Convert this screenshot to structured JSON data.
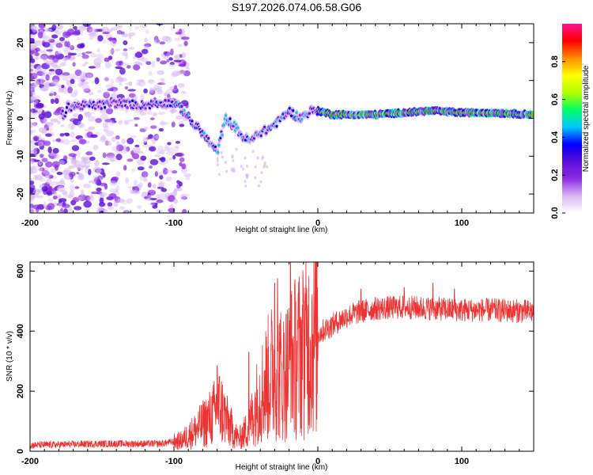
{
  "figure_title": "S197.2026.074.06.58.G06",
  "colors": {
    "line": "#ee3333",
    "colormap": [
      "#ffffff",
      "#d8b8f4",
      "#8a2be2",
      "#5a0ed8",
      "#0000ff",
      "#00c8ff",
      "#00ff66",
      "#b4ff00",
      "#ffff00",
      "#ff8c00",
      "#ff0000",
      "#ff1493"
    ]
  },
  "chart_data": [
    {
      "type": "heatmap",
      "title": "",
      "xlabel": "Height of straight line (km)",
      "ylabel": "Frequency (Hz)",
      "xlim": [
        -200,
        150
      ],
      "ylim": [
        -25,
        25
      ],
      "xticks": [
        -200,
        -100,
        0,
        100
      ],
      "xtick_labels": [
        "-200",
        "-100",
        "0",
        "100"
      ],
      "yticks": [
        -20,
        -10,
        0,
        10,
        20
      ],
      "ytick_labels": [
        "-20",
        "-10",
        "0",
        "10",
        "20"
      ],
      "colorbar": {
        "label": "Normalized spectral amplitude",
        "range": [
          0,
          1
        ],
        "ticks": [
          0.0,
          0.2,
          0.4,
          0.6,
          0.8
        ],
        "tick_labels": [
          "0.0",
          "0.2",
          "0.4",
          "0.6",
          "0.8"
        ]
      },
      "ridge": [
        {
          "x": -175,
          "f": 3
        },
        {
          "x": -160,
          "f": 3.5
        },
        {
          "x": -150,
          "f": 3.5
        },
        {
          "x": -140,
          "f": 4
        },
        {
          "x": -120,
          "f": 3.5
        },
        {
          "x": -110,
          "f": 4
        },
        {
          "x": -100,
          "f": 4
        },
        {
          "x": -93,
          "f": 2
        },
        {
          "x": -88,
          "f": -1
        },
        {
          "x": -82,
          "f": -3
        },
        {
          "x": -76,
          "f": -6
        },
        {
          "x": -70,
          "f": -9
        },
        {
          "x": -64,
          "f": 0
        },
        {
          "x": -58,
          "f": -2
        },
        {
          "x": -52,
          "f": -5
        },
        {
          "x": -46,
          "f": -6
        },
        {
          "x": -42,
          "f": -4
        },
        {
          "x": -35,
          "f": -3
        },
        {
          "x": -28,
          "f": -1
        },
        {
          "x": -20,
          "f": 2
        },
        {
          "x": -12,
          "f": 0
        },
        {
          "x": -5,
          "f": 2
        },
        {
          "x": 0,
          "f": 2
        },
        {
          "x": 10,
          "f": 1
        },
        {
          "x": 40,
          "f": 1
        },
        {
          "x": 80,
          "f": 2
        },
        {
          "x": 100,
          "f": 1.5
        },
        {
          "x": 120,
          "f": 1.5
        },
        {
          "x": 150,
          "f": 1
        }
      ]
    },
    {
      "type": "line",
      "title": "",
      "xlabel": "Height of straight line (km)",
      "ylabel": "SNR (10 * v/v)",
      "xlim": [
        -200,
        150
      ],
      "ylim": [
        0,
        630
      ],
      "xticks": [
        -200,
        -100,
        0,
        100
      ],
      "xtick_labels": [
        "-200",
        "-100",
        "0",
        "100"
      ],
      "yticks": [
        0,
        200,
        400,
        600
      ],
      "ytick_labels": [
        "0",
        "200",
        "400",
        "600"
      ],
      "series": [
        {
          "name": "SNR",
          "envelope": [
            {
              "x": -200,
              "y": 20
            },
            {
              "x": -150,
              "y": 25
            },
            {
              "x": -110,
              "y": 25
            },
            {
              "x": -95,
              "y": 35
            },
            {
              "x": -85,
              "y": 70
            },
            {
              "x": -75,
              "y": 110
            },
            {
              "x": -68,
              "y": 150
            },
            {
              "x": -62,
              "y": 90
            },
            {
              "x": -55,
              "y": 40
            },
            {
              "x": -48,
              "y": 80
            },
            {
              "x": -42,
              "y": 170
            },
            {
              "x": -36,
              "y": 230
            },
            {
              "x": -30,
              "y": 280
            },
            {
              "x": -24,
              "y": 250
            },
            {
              "x": -18,
              "y": 300
            },
            {
              "x": -12,
              "y": 330
            },
            {
              "x": -5,
              "y": 370
            },
            {
              "x": 0,
              "y": 390
            },
            {
              "x": 10,
              "y": 420
            },
            {
              "x": 20,
              "y": 450
            },
            {
              "x": 30,
              "y": 465
            },
            {
              "x": 40,
              "y": 475
            },
            {
              "x": 60,
              "y": 480
            },
            {
              "x": 80,
              "y": 475
            },
            {
              "x": 100,
              "y": 470
            },
            {
              "x": 120,
              "y": 470
            },
            {
              "x": 150,
              "y": 465
            }
          ],
          "spikes": [
            {
              "x": -70,
              "y": 285
            },
            {
              "x": -48,
              "y": 330
            },
            {
              "x": -30,
              "y": 560
            },
            {
              "x": -28,
              "y": 575
            },
            {
              "x": -19,
              "y": 630
            },
            {
              "x": -10,
              "y": 500
            },
            {
              "x": 30,
              "y": 540
            },
            {
              "x": 60,
              "y": 545
            },
            {
              "x": 80,
              "y": 560
            },
            {
              "x": 95,
              "y": 540
            }
          ]
        }
      ]
    }
  ]
}
